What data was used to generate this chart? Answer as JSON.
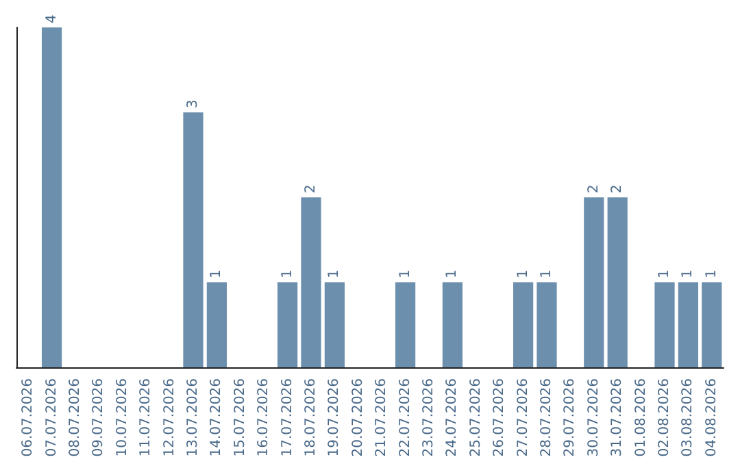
{
  "chart_data": {
    "type": "bar",
    "categories": [
      "06.07.2026",
      "07.07.2026",
      "08.07.2026",
      "09.07.2026",
      "10.07.2026",
      "11.07.2026",
      "12.07.2026",
      "13.07.2026",
      "14.07.2026",
      "15.07.2026",
      "16.07.2026",
      "17.07.2026",
      "18.07.2026",
      "19.07.2026",
      "20.07.2026",
      "21.07.2026",
      "22.07.2026",
      "23.07.2026",
      "24.07.2026",
      "25.07.2026",
      "26.07.2026",
      "27.07.2026",
      "28.07.2026",
      "29.07.2026",
      "30.07.2026",
      "31.07.2026",
      "01.08.2026",
      "02.08.2026",
      "03.08.2026",
      "04.08.2026"
    ],
    "values": [
      0,
      4,
      0,
      0,
      0,
      0,
      0,
      3,
      1,
      0,
      0,
      1,
      2,
      1,
      0,
      0,
      1,
      0,
      1,
      0,
      0,
      1,
      1,
      0,
      2,
      2,
      0,
      1,
      1,
      1
    ],
    "value_labels": [
      null,
      "4",
      null,
      null,
      null,
      null,
      null,
      "3",
      "1",
      null,
      null,
      "1",
      "2",
      "1",
      null,
      null,
      "1",
      null,
      "1",
      null,
      null,
      "1",
      "1",
      null,
      "2",
      "2",
      null,
      "1",
      "1",
      "1"
    ],
    "color": "#6d8fae",
    "tick_labels": "x",
    "grid": false
  }
}
